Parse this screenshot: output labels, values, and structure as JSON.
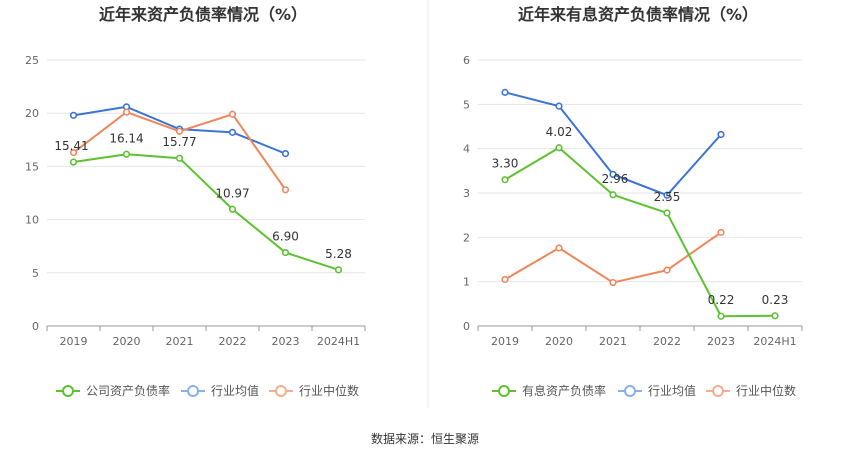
{
  "source": "数据来源：恒生聚源",
  "colors": {
    "company": "#5ec132",
    "industry_avg": "#3b73d9",
    "industry_median": "#f0865a",
    "grid": "#e6e6e6",
    "axis": "#999999"
  },
  "chart_data": [
    {
      "type": "line",
      "title": "近年来资产负债率情况（%）",
      "categories": [
        "2019",
        "2020",
        "2021",
        "2022",
        "2023",
        "2024H1"
      ],
      "ylim": [
        0,
        25
      ],
      "yticks": [
        0,
        5,
        10,
        15,
        20,
        25
      ],
      "grid": true,
      "legend_position": "bottom",
      "series": [
        {
          "name": "公司资产负债率",
          "color_key": "company",
          "values": [
            15.41,
            16.14,
            15.77,
            10.97,
            6.9,
            5.28
          ],
          "labels": [
            "15.41",
            "16.14",
            "15.77",
            "10.97",
            "6.90",
            "5.28"
          ]
        },
        {
          "name": "行业均值",
          "color_key": "industry_avg",
          "values": [
            19.8,
            20.6,
            18.5,
            18.2,
            16.2,
            null
          ],
          "labels": []
        },
        {
          "name": "行业中位数",
          "color_key": "industry_median",
          "values": [
            16.3,
            20.1,
            18.3,
            19.9,
            12.8,
            null
          ],
          "labels": []
        }
      ]
    },
    {
      "type": "line",
      "title": "近年来有息资产负债率情况（%）",
      "categories": [
        "2019",
        "2020",
        "2021",
        "2022",
        "2023",
        "2024H1"
      ],
      "ylim": [
        0,
        6
      ],
      "yticks": [
        0,
        1,
        2,
        3,
        4,
        5,
        6
      ],
      "grid": true,
      "legend_position": "bottom",
      "series": [
        {
          "name": "有息资产负债率",
          "color_key": "company",
          "values": [
            3.3,
            4.02,
            2.96,
            2.55,
            0.22,
            0.23
          ],
          "labels": [
            "3.30",
            "4.02",
            "2.96",
            "2.55",
            "0.22",
            "0.23"
          ]
        },
        {
          "name": "行业均值",
          "color_key": "industry_avg",
          "values": [
            5.27,
            4.96,
            3.42,
            2.95,
            4.32,
            null
          ],
          "labels": []
        },
        {
          "name": "行业中位数",
          "color_key": "industry_median",
          "values": [
            1.05,
            1.76,
            0.98,
            1.26,
            2.11,
            null
          ],
          "labels": []
        }
      ]
    }
  ]
}
